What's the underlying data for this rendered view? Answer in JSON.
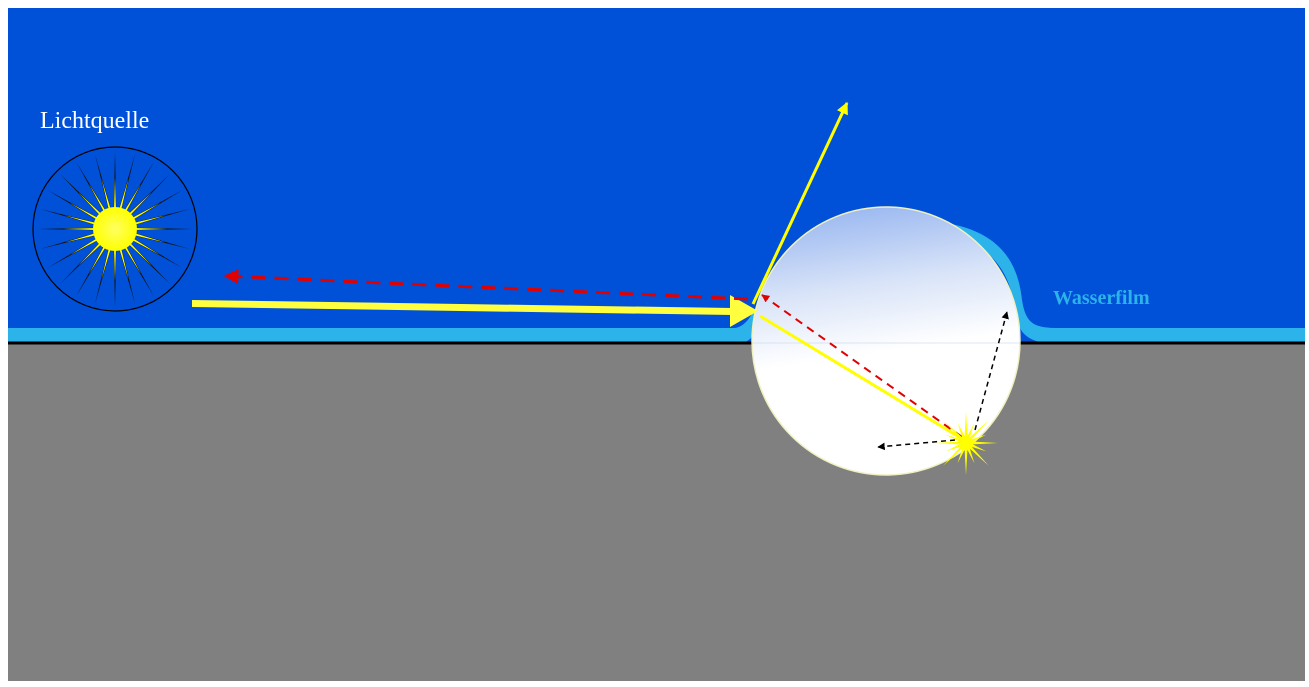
{
  "labels": {
    "light_source": "Lichtquelle",
    "water_film": "Wasserfilm"
  },
  "colors": {
    "air": "#0050d8",
    "substrate": "#808080",
    "water_film": "#2bb3ea",
    "incident_ray": "#ffff00",
    "retroreflected_ray": "#e00000",
    "sun_core": "#ffff00",
    "sun_rays": "#000000",
    "scatter_path": "#000000",
    "frame": "#ffffff"
  },
  "icons": {
    "light_source": "sun-icon",
    "scatter_point": "starburst-icon"
  }
}
